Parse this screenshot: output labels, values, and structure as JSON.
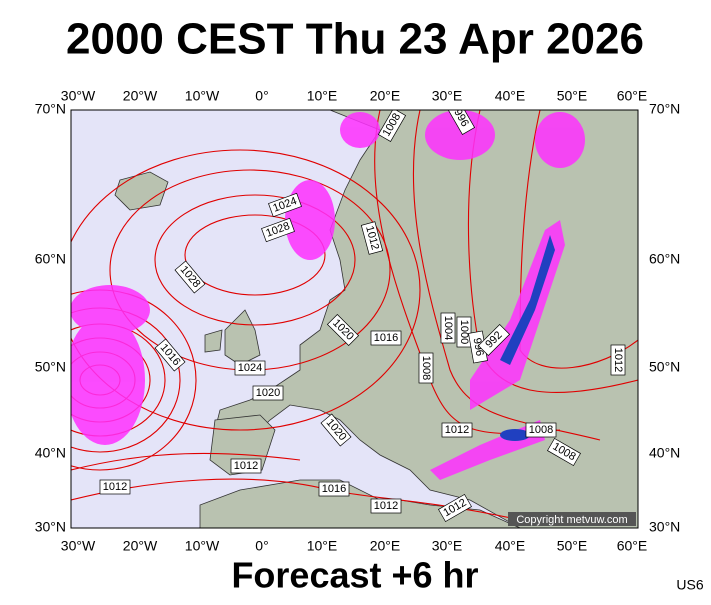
{
  "title": "2000 CEST Thu 23 Apr 2026",
  "footer": "Forecast +6 hr",
  "code": "US6",
  "copyright": "Copyright metvuw.com",
  "lon_labels": [
    "30°W",
    "20°W",
    "10°W",
    "0°",
    "10°E",
    "20°E",
    "30°E",
    "40°E",
    "50°E",
    "60°E"
  ],
  "lat_labels": [
    "70°N",
    "60°N",
    "50°N",
    "40°N",
    "30°N"
  ],
  "isobar_labels": [
    "1008",
    "996",
    "1024",
    "1028",
    "1012",
    "1028",
    "1020",
    "1016",
    "1004",
    "1000",
    "996",
    "992",
    "1016",
    "1008",
    "1024",
    "1020",
    "1020",
    "1012",
    "1008",
    "1012",
    "1012",
    "1008",
    "1012",
    "1016",
    "1012",
    "1012"
  ]
}
